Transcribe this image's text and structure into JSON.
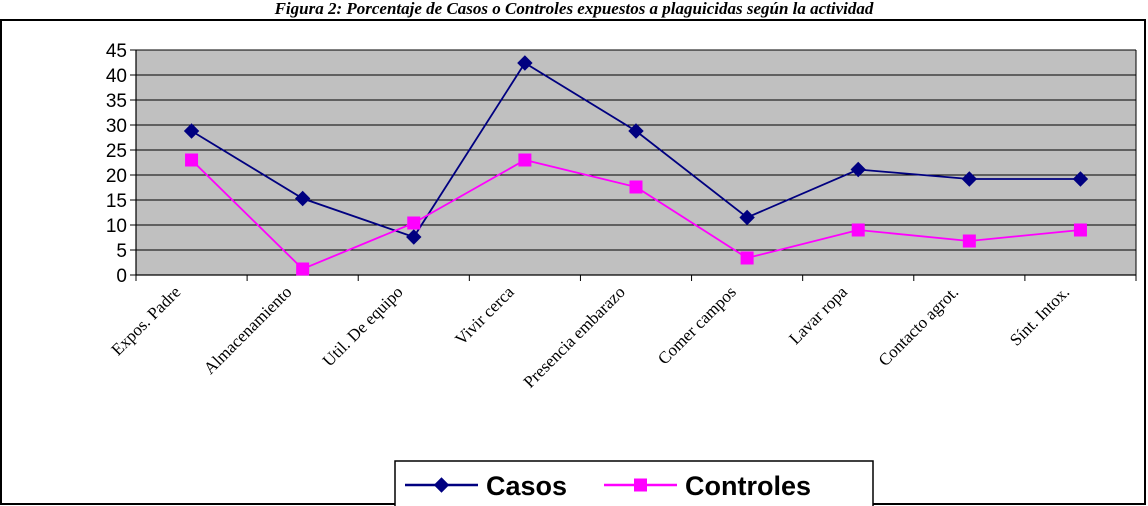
{
  "chart_data": {
    "type": "line",
    "title": "Figura 2: Porcentaje de Casos o Controles expuestos a plaguicidas según la actividad",
    "xlabel": "",
    "ylabel": "",
    "categories": [
      "Expos. Padre",
      "Almacenamiento",
      "Util. De equipo",
      "Vivir cerca",
      "Presencia embarazo",
      "Comer campos",
      "Lavar ropa",
      "Contacto agrot.",
      "Sínt. Intox."
    ],
    "yticks": [
      "0",
      "5",
      "10",
      "15",
      "20",
      "25",
      "30",
      "35",
      "40",
      "45"
    ],
    "ylim": [
      0,
      45
    ],
    "grid": true,
    "legend_position": "bottom",
    "series": [
      {
        "name": "Casos",
        "color": "#000080",
        "marker": "diamond",
        "values": [
          28.8,
          15.3,
          7.6,
          42.4,
          28.8,
          11.5,
          21.1,
          19.2,
          19.2
        ]
      },
      {
        "name": "Controles",
        "color": "#ff00ff",
        "marker": "square",
        "values": [
          23.0,
          1.2,
          10.4,
          23.0,
          17.6,
          3.4,
          9.0,
          6.8,
          9.0
        ]
      }
    ],
    "colors": {
      "plot_background": "#c0c0c0",
      "gridline": "#000000",
      "axis": "#000000"
    }
  }
}
